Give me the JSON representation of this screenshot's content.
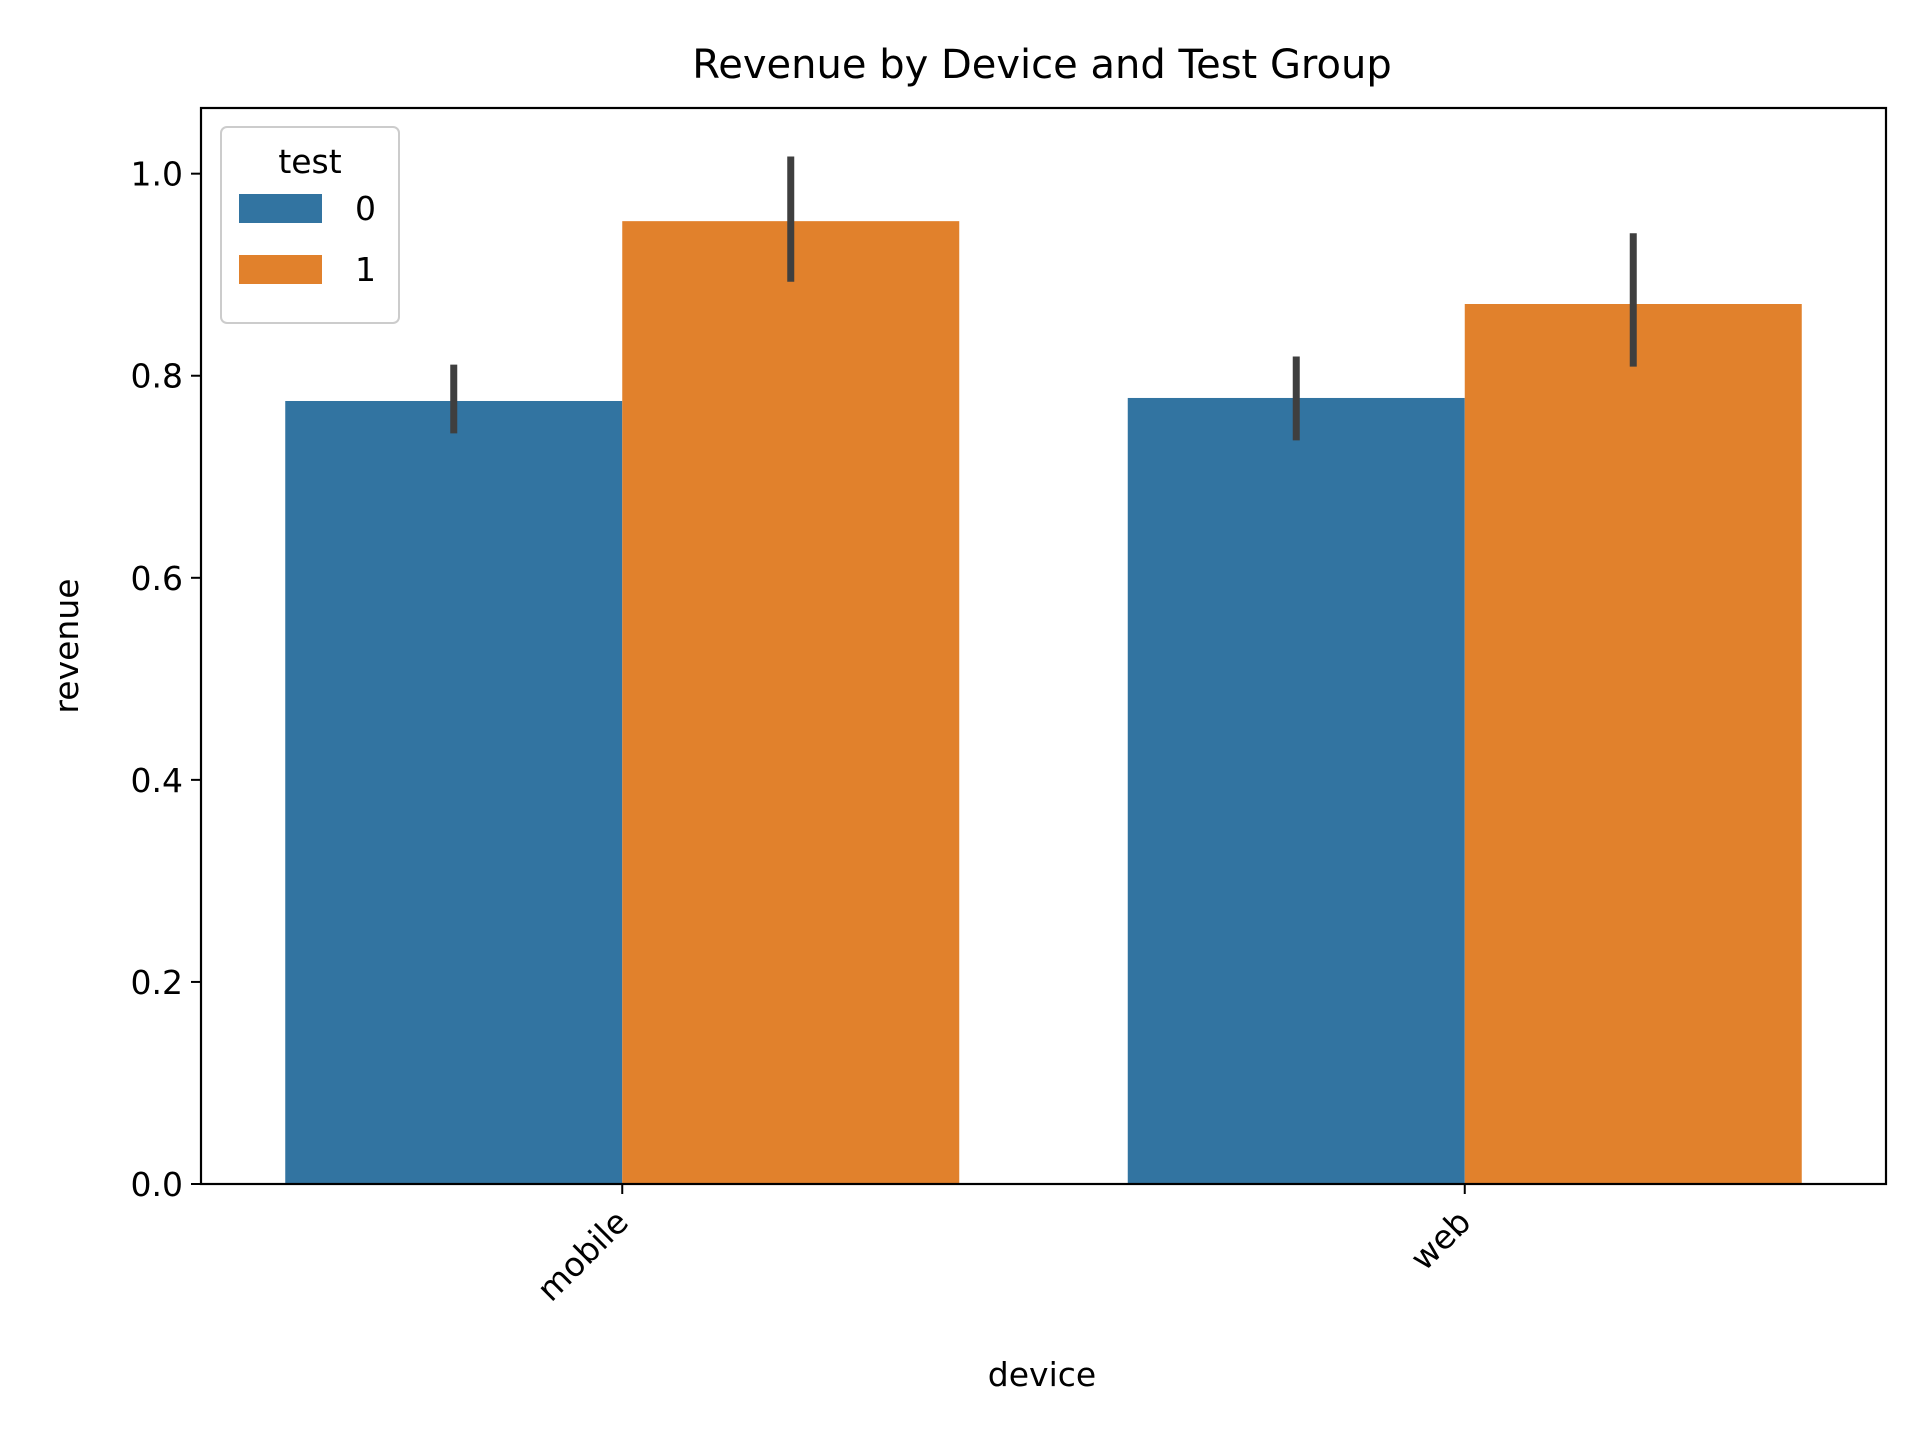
{
  "chart_data": {
    "type": "bar",
    "title": "Revenue by Device and Test Group",
    "xlabel": "device",
    "ylabel": "revenue",
    "categories": [
      "mobile",
      "web"
    ],
    "ylim": [
      0,
      1.065
    ],
    "yticks": [
      "0.0",
      "0.2",
      "0.4",
      "0.6",
      "0.8",
      "1.0"
    ],
    "ytick_values": [
      0,
      0.2,
      0.4,
      0.6,
      0.8,
      1.0
    ],
    "grid": false,
    "legend": {
      "title": "test",
      "placement": "top-left"
    },
    "series": [
      {
        "name": "0",
        "color": "#3274a1",
        "values": [
          0.775,
          0.778
        ],
        "ci": [
          [
            0.743,
            0.811
          ],
          [
            0.736,
            0.819
          ]
        ]
      },
      {
        "name": "1",
        "color": "#e1812c",
        "values": [
          0.953,
          0.871
        ],
        "ci": [
          [
            0.893,
            1.017
          ],
          [
            0.809,
            0.941
          ]
        ]
      }
    ],
    "errorbar_color": "#3f3f3f",
    "x_tick_rotation": "45deg"
  }
}
